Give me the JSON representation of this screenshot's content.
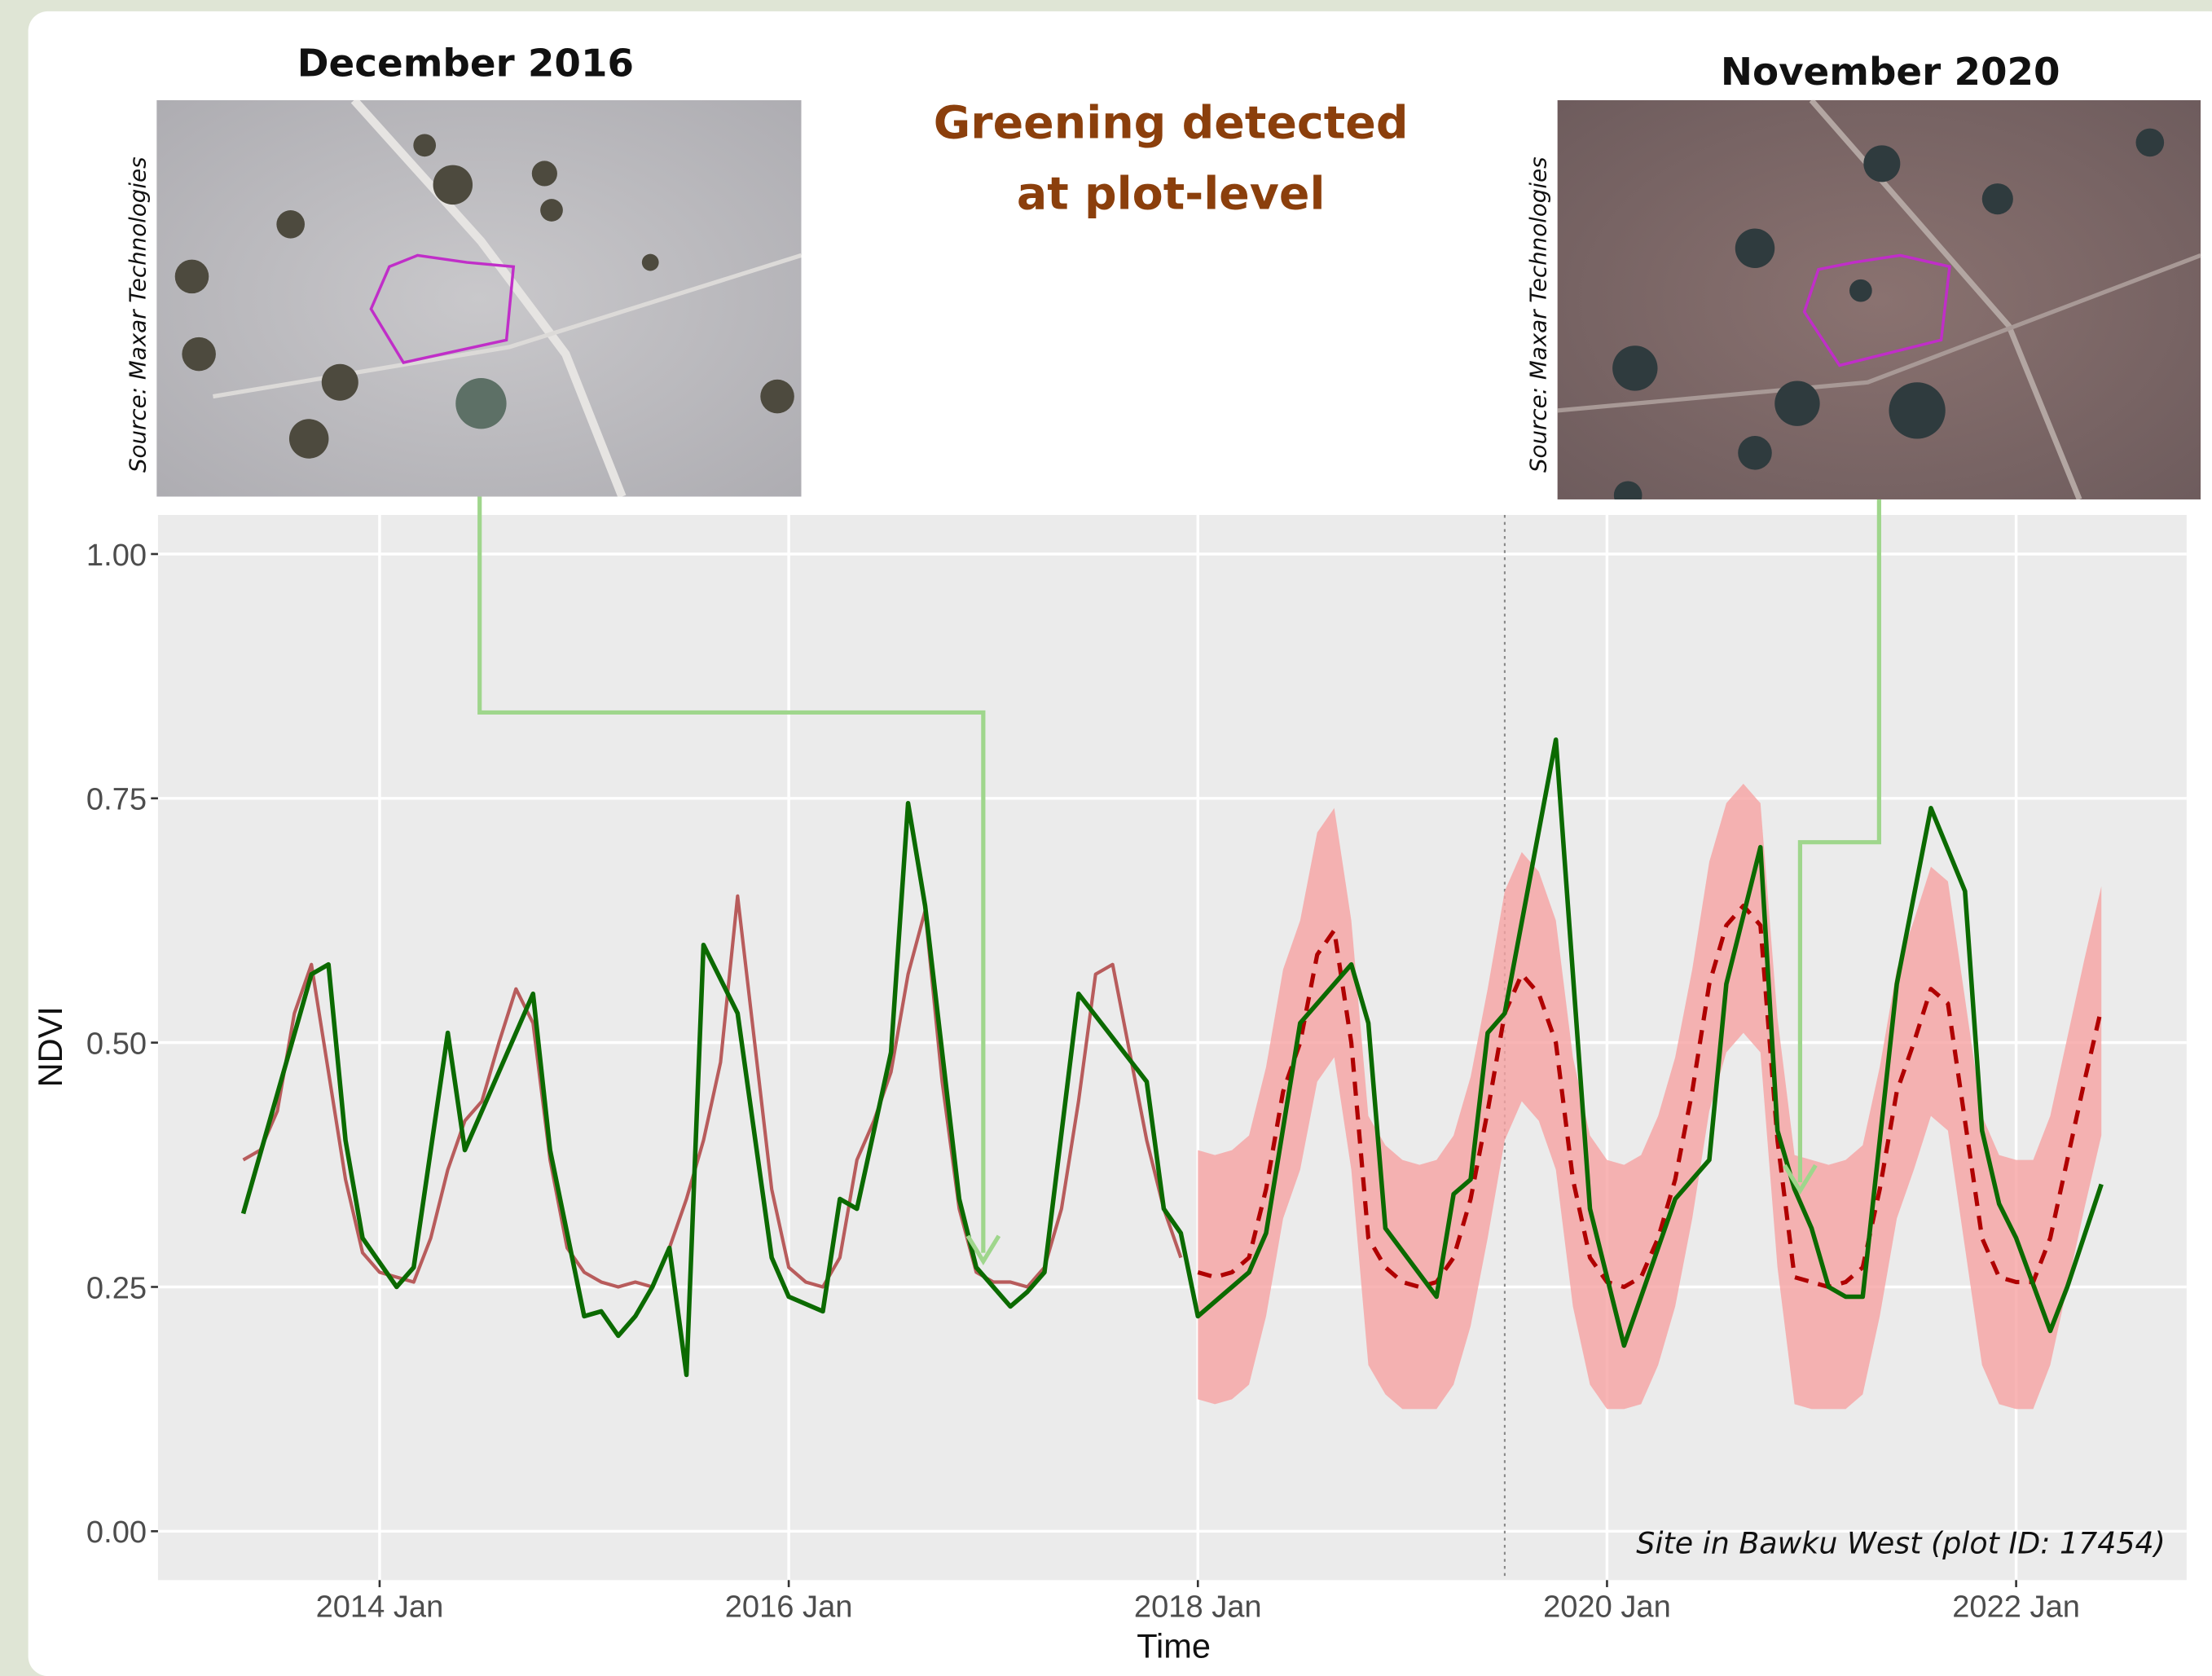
{
  "images": [
    {
      "title": "December 2016",
      "source": "Source: Maxar Technologies"
    },
    {
      "title": "November 2020",
      "source": "Source: Maxar Technologies"
    }
  ],
  "headline": "Greening detected at plot-level",
  "chart_data": {
    "type": "line",
    "x_label": "Time",
    "y_label": "NDVI",
    "caption": "Site in Bawku West (plot ID: 17454)",
    "xlim": [
      "2012-12",
      "2022-11"
    ],
    "xticks": [
      {
        "value": "2014-01",
        "label": "2014 Jan"
      },
      {
        "value": "2016-01",
        "label": "2016 Jan"
      },
      {
        "value": "2018-01",
        "label": "2018 Jan"
      },
      {
        "value": "2020-01",
        "label": "2020 Jan"
      },
      {
        "value": "2022-01",
        "label": "2022 Jan"
      }
    ],
    "ylim": [
      -0.05,
      1.04
    ],
    "yticks": [
      {
        "value": 0,
        "label": "0.00"
      },
      {
        "value": 0.25,
        "label": "0.25"
      },
      {
        "value": 0.5,
        "label": "0.50"
      },
      {
        "value": 0.75,
        "label": "0.75"
      },
      {
        "value": 1,
        "label": "1.00"
      }
    ],
    "grid": true,
    "vline": "2019-07",
    "band": {
      "color": "#f6a3a3",
      "x": [
        "2018-01",
        "2018-02",
        "2018-03",
        "2018-04",
        "2018-05",
        "2018-06",
        "2018-07",
        "2018-08",
        "2018-09",
        "2018-10",
        "2018-11",
        "2018-12",
        "2019-01",
        "2019-02",
        "2019-03",
        "2019-04",
        "2019-05",
        "2019-06",
        "2019-07",
        "2019-08",
        "2019-09",
        "2019-10",
        "2019-11",
        "2019-12",
        "2020-01",
        "2020-02",
        "2020-03",
        "2020-04",
        "2020-05",
        "2020-06",
        "2020-07",
        "2020-08",
        "2020-09",
        "2020-10",
        "2020-11",
        "2020-12",
        "2021-01",
        "2021-02",
        "2021-03",
        "2021-04",
        "2021-05",
        "2021-06",
        "2021-07",
        "2021-08",
        "2021-09",
        "2021-10",
        "2021-11",
        "2021-12",
        "2022-01",
        "2022-02",
        "2022-03",
        "2022-04",
        "2022-05",
        "2022-06"
      ],
      "lower": [
        0.135,
        0.13,
        0.135,
        0.15,
        0.22,
        0.32,
        0.37,
        0.46,
        0.485,
        0.37,
        0.17,
        0.14,
        0.125,
        0.125,
        0.125,
        0.15,
        0.21,
        0.3,
        0.4,
        0.44,
        0.42,
        0.37,
        0.23,
        0.15,
        0.125,
        0.125,
        0.13,
        0.17,
        0.23,
        0.32,
        0.43,
        0.49,
        0.51,
        0.49,
        0.27,
        0.13,
        0.125,
        0.125,
        0.125,
        0.14,
        0.22,
        0.32,
        0.37,
        0.425,
        0.41,
        0.29,
        0.17,
        0.13,
        0.125,
        0.125,
        0.17,
        0.25,
        0.33,
        0.405
      ],
      "upper": [
        0.39,
        0.385,
        0.39,
        0.405,
        0.475,
        0.575,
        0.625,
        0.715,
        0.74,
        0.625,
        0.425,
        0.395,
        0.38,
        0.375,
        0.38,
        0.405,
        0.465,
        0.555,
        0.655,
        0.695,
        0.675,
        0.625,
        0.485,
        0.405,
        0.38,
        0.375,
        0.385,
        0.425,
        0.485,
        0.575,
        0.685,
        0.745,
        0.765,
        0.745,
        0.525,
        0.385,
        0.38,
        0.375,
        0.38,
        0.395,
        0.475,
        0.575,
        0.625,
        0.68,
        0.665,
        0.545,
        0.425,
        0.385,
        0.38,
        0.38,
        0.425,
        0.505,
        0.585,
        0.66
      ]
    },
    "series": [
      {
        "color": "#b85c5c",
        "dashed": false,
        "x": [
          "2013-05",
          "2013-06",
          "2013-07",
          "2013-08",
          "2013-09",
          "2013-10",
          "2013-11",
          "2013-12",
          "2014-01",
          "2014-02",
          "2014-03",
          "2014-04",
          "2014-05",
          "2014-06",
          "2014-07",
          "2014-08",
          "2014-09",
          "2014-10",
          "2014-11",
          "2014-12",
          "2015-01",
          "2015-02",
          "2015-03",
          "2015-04",
          "2015-05",
          "2015-06",
          "2015-07",
          "2015-08",
          "2015-09",
          "2015-10",
          "2015-11",
          "2015-12",
          "2016-01",
          "2016-02",
          "2016-03",
          "2016-04",
          "2016-05",
          "2016-06",
          "2016-07",
          "2016-08",
          "2016-09",
          "2016-10",
          "2016-11",
          "2016-12",
          "2017-01",
          "2017-02",
          "2017-03",
          "2017-04",
          "2017-05",
          "2017-06",
          "2017-07",
          "2017-08",
          "2017-09",
          "2017-10",
          "2017-11",
          "2017-12"
        ],
        "values": [
          0.38,
          0.39,
          0.43,
          0.53,
          0.58,
          0.47,
          0.36,
          0.285,
          0.265,
          0.26,
          0.255,
          0.3,
          0.37,
          0.42,
          0.44,
          0.5,
          0.555,
          0.52,
          0.38,
          0.29,
          0.265,
          0.255,
          0.25,
          0.255,
          0.25,
          0.29,
          0.34,
          0.4,
          0.48,
          0.65,
          0.5,
          0.35,
          0.27,
          0.255,
          0.25,
          0.28,
          0.38,
          0.42,
          0.47,
          0.57,
          0.635,
          0.46,
          0.33,
          0.265,
          0.255,
          0.255,
          0.25,
          0.27,
          0.33,
          0.44,
          0.57,
          0.58,
          0.49,
          0.4,
          0.33,
          0.28
        ]
      },
      {
        "color": "#b00000",
        "dashed": true,
        "x": [
          "2018-01",
          "2018-02",
          "2018-03",
          "2018-04",
          "2018-05",
          "2018-06",
          "2018-07",
          "2018-08",
          "2018-09",
          "2018-10",
          "2018-11",
          "2018-12",
          "2019-01",
          "2019-02",
          "2019-03",
          "2019-04",
          "2019-05",
          "2019-06",
          "2019-07",
          "2019-08",
          "2019-09",
          "2019-10",
          "2019-11",
          "2019-12",
          "2020-01",
          "2020-02",
          "2020-03",
          "2020-04",
          "2020-05",
          "2020-06",
          "2020-07",
          "2020-08",
          "2020-09",
          "2020-10",
          "2020-11",
          "2020-12",
          "2021-01",
          "2021-02",
          "2021-03",
          "2021-04",
          "2021-05",
          "2021-06",
          "2021-07",
          "2021-08",
          "2021-09",
          "2021-10",
          "2021-11",
          "2021-12",
          "2022-01",
          "2022-02",
          "2022-03",
          "2022-04",
          "2022-05",
          "2022-06"
        ],
        "values": [
          0.265,
          0.26,
          0.265,
          0.28,
          0.35,
          0.45,
          0.5,
          0.59,
          0.615,
          0.5,
          0.3,
          0.27,
          0.255,
          0.25,
          0.255,
          0.28,
          0.34,
          0.43,
          0.53,
          0.57,
          0.55,
          0.5,
          0.36,
          0.28,
          0.255,
          0.25,
          0.26,
          0.3,
          0.36,
          0.45,
          0.56,
          0.62,
          0.64,
          0.62,
          0.4,
          0.26,
          0.255,
          0.25,
          0.255,
          0.27,
          0.35,
          0.45,
          0.5,
          0.555,
          0.54,
          0.42,
          0.3,
          0.26,
          0.255,
          0.255,
          0.3,
          0.38,
          0.46,
          0.535
        ]
      },
      {
        "color": "#0b6a00",
        "dashed": false,
        "x": [
          "2013-05",
          "2013-09",
          "2013-10",
          "2013-11",
          "2013-12",
          "2014-02",
          "2014-03",
          "2014-05",
          "2014-06",
          "2014-10",
          "2014-11",
          "2015-01",
          "2015-02",
          "2015-03",
          "2015-04",
          "2015-05",
          "2015-06",
          "2015-07",
          "2015-08",
          "2015-10",
          "2015-12",
          "2016-01",
          "2016-03",
          "2016-04",
          "2016-05",
          "2016-07",
          "2016-08",
          "2016-09",
          "2016-11",
          "2016-12",
          "2017-02",
          "2017-03",
          "2017-04",
          "2017-06",
          "2017-10",
          "2017-11",
          "2017-12",
          "2018-01",
          "2018-04",
          "2018-05",
          "2018-07",
          "2018-10",
          "2018-11",
          "2018-12",
          "2019-03",
          "2019-04",
          "2019-05",
          "2019-06",
          "2019-07",
          "2019-10",
          "2019-12",
          "2020-02",
          "2020-05",
          "2020-07",
          "2020-08",
          "2020-10",
          "2020-11",
          "2020-12",
          "2021-01",
          "2021-02",
          "2021-03",
          "2021-04",
          "2021-06",
          "2021-08",
          "2021-10",
          "2021-11",
          "2021-12",
          "2022-01",
          "2022-03",
          "2022-04",
          "2022-06"
        ],
        "values": [
          0.325,
          0.57,
          0.58,
          0.4,
          0.3,
          0.25,
          0.27,
          0.51,
          0.39,
          0.55,
          0.39,
          0.22,
          0.225,
          0.2,
          0.22,
          0.25,
          0.29,
          0.16,
          0.6,
          0.53,
          0.28,
          0.24,
          0.225,
          0.34,
          0.33,
          0.49,
          0.745,
          0.64,
          0.34,
          0.27,
          0.23,
          0.245,
          0.265,
          0.55,
          0.46,
          0.33,
          0.305,
          0.22,
          0.265,
          0.305,
          0.52,
          0.58,
          0.52,
          0.31,
          0.24,
          0.345,
          0.36,
          0.51,
          0.53,
          0.81,
          0.33,
          0.19,
          0.34,
          0.38,
          0.56,
          0.7,
          0.41,
          0.35,
          0.31,
          0.25,
          0.24,
          0.24,
          0.56,
          0.74,
          0.655,
          0.41,
          0.335,
          0.3,
          0.205,
          0.25,
          0.355
        ]
      }
    ]
  }
}
